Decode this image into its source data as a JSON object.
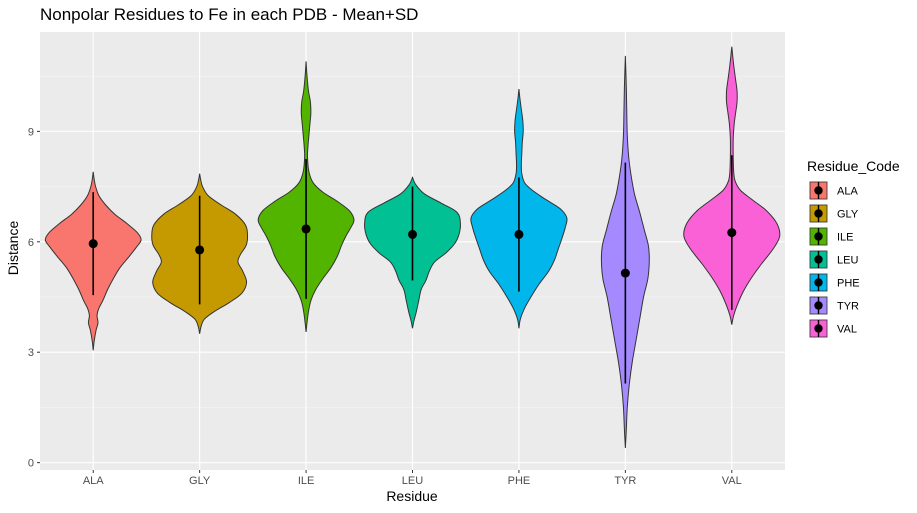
{
  "chart_data": {
    "type": "violin",
    "title": "Nonpolar Residues to Fe in each PDB - Mean+SD",
    "xlabel": "Residue",
    "ylabel": "Distance",
    "ylim": [
      -0.2,
      11.7
    ],
    "yticks": [
      0,
      3,
      6,
      9
    ],
    "categories": [
      "ALA",
      "GLY",
      "ILE",
      "LEU",
      "PHE",
      "TYR",
      "VAL"
    ],
    "legend": {
      "title": "Residue_Code",
      "placement": "right",
      "entries": [
        "ALA",
        "GLY",
        "ILE",
        "LEU",
        "PHE",
        "TYR",
        "VAL"
      ]
    },
    "colors": [
      "#F8766D",
      "#C49A00",
      "#53B400",
      "#00C094",
      "#00B6EB",
      "#A58AFF",
      "#FB61D7"
    ],
    "panel_background": "#EBEBEB",
    "grid": true,
    "series": [
      {
        "name": "ALA",
        "mean": 5.95,
        "sd_low": 4.55,
        "sd_high": 7.35,
        "min": 3.05,
        "max": 7.9,
        "density": [
          [
            3.05,
            0.0
          ],
          [
            3.3,
            0.02
          ],
          [
            3.6,
            0.06
          ],
          [
            3.8,
            0.1
          ],
          [
            4.0,
            0.08
          ],
          [
            4.2,
            0.12
          ],
          [
            4.4,
            0.2
          ],
          [
            4.7,
            0.3
          ],
          [
            5.0,
            0.42
          ],
          [
            5.3,
            0.56
          ],
          [
            5.6,
            0.75
          ],
          [
            5.85,
            0.9
          ],
          [
            6.05,
            1.0
          ],
          [
            6.25,
            0.92
          ],
          [
            6.5,
            0.7
          ],
          [
            6.75,
            0.45
          ],
          [
            7.0,
            0.26
          ],
          [
            7.25,
            0.12
          ],
          [
            7.5,
            0.05
          ],
          [
            7.7,
            0.02
          ],
          [
            7.9,
            0.0
          ]
        ]
      },
      {
        "name": "GLY",
        "mean": 5.78,
        "sd_low": 4.3,
        "sd_high": 7.25,
        "min": 3.5,
        "max": 7.85,
        "density": [
          [
            3.5,
            0.0
          ],
          [
            3.7,
            0.03
          ],
          [
            3.9,
            0.1
          ],
          [
            4.1,
            0.3
          ],
          [
            4.35,
            0.62
          ],
          [
            4.6,
            0.88
          ],
          [
            4.9,
            0.98
          ],
          [
            5.2,
            0.9
          ],
          [
            5.45,
            0.8
          ],
          [
            5.65,
            0.85
          ],
          [
            5.9,
            0.97
          ],
          [
            6.15,
            1.0
          ],
          [
            6.45,
            0.96
          ],
          [
            6.75,
            0.75
          ],
          [
            7.0,
            0.45
          ],
          [
            7.25,
            0.18
          ],
          [
            7.5,
            0.06
          ],
          [
            7.7,
            0.02
          ],
          [
            7.85,
            0.0
          ]
        ]
      },
      {
        "name": "ILE",
        "mean": 6.35,
        "sd_low": 4.45,
        "sd_high": 8.25,
        "min": 3.55,
        "max": 10.9,
        "density": [
          [
            3.55,
            0.0
          ],
          [
            3.8,
            0.02
          ],
          [
            4.1,
            0.05
          ],
          [
            4.4,
            0.1
          ],
          [
            4.7,
            0.2
          ],
          [
            5.0,
            0.35
          ],
          [
            5.3,
            0.52
          ],
          [
            5.6,
            0.65
          ],
          [
            5.9,
            0.74
          ],
          [
            6.15,
            0.83
          ],
          [
            6.4,
            0.94
          ],
          [
            6.6,
            1.0
          ],
          [
            6.85,
            0.9
          ],
          [
            7.1,
            0.65
          ],
          [
            7.35,
            0.35
          ],
          [
            7.6,
            0.15
          ],
          [
            7.9,
            0.06
          ],
          [
            8.3,
            0.03
          ],
          [
            8.6,
            0.04
          ],
          [
            8.9,
            0.06
          ],
          [
            9.2,
            0.08
          ],
          [
            9.5,
            0.1
          ],
          [
            9.8,
            0.09
          ],
          [
            10.1,
            0.05
          ],
          [
            10.5,
            0.02
          ],
          [
            10.9,
            0.0
          ]
        ]
      },
      {
        "name": "LEU",
        "mean": 6.2,
        "sd_low": 4.95,
        "sd_high": 7.5,
        "min": 3.65,
        "max": 7.75,
        "density": [
          [
            3.65,
            0.0
          ],
          [
            3.85,
            0.03
          ],
          [
            4.1,
            0.08
          ],
          [
            4.4,
            0.13
          ],
          [
            4.7,
            0.18
          ],
          [
            4.95,
            0.28
          ],
          [
            5.2,
            0.35
          ],
          [
            5.45,
            0.46
          ],
          [
            5.7,
            0.7
          ],
          [
            5.95,
            0.88
          ],
          [
            6.2,
            0.97
          ],
          [
            6.5,
            1.0
          ],
          [
            6.8,
            0.93
          ],
          [
            7.05,
            0.6
          ],
          [
            7.3,
            0.25
          ],
          [
            7.55,
            0.07
          ],
          [
            7.75,
            0.0
          ]
        ]
      },
      {
        "name": "PHE",
        "mean": 6.2,
        "sd_low": 4.65,
        "sd_high": 7.75,
        "min": 3.65,
        "max": 10.15,
        "density": [
          [
            3.65,
            0.0
          ],
          [
            3.9,
            0.03
          ],
          [
            4.2,
            0.12
          ],
          [
            4.5,
            0.25
          ],
          [
            4.85,
            0.42
          ],
          [
            5.2,
            0.62
          ],
          [
            5.5,
            0.74
          ],
          [
            5.8,
            0.82
          ],
          [
            6.1,
            0.9
          ],
          [
            6.4,
            0.97
          ],
          [
            6.65,
            1.0
          ],
          [
            6.9,
            0.86
          ],
          [
            7.15,
            0.56
          ],
          [
            7.4,
            0.28
          ],
          [
            7.6,
            0.12
          ],
          [
            7.85,
            0.06
          ],
          [
            8.1,
            0.05
          ],
          [
            8.4,
            0.06
          ],
          [
            8.7,
            0.07
          ],
          [
            9.0,
            0.09
          ],
          [
            9.3,
            0.08
          ],
          [
            9.6,
            0.05
          ],
          [
            9.9,
            0.02
          ],
          [
            10.15,
            0.0
          ]
        ]
      },
      {
        "name": "TYR",
        "mean": 5.15,
        "sd_low": 2.15,
        "sd_high": 8.15,
        "min": 0.4,
        "max": 11.05,
        "density": [
          [
            0.4,
            0.0
          ],
          [
            0.9,
            0.02
          ],
          [
            1.5,
            0.04
          ],
          [
            2.1,
            0.08
          ],
          [
            2.7,
            0.14
          ],
          [
            3.3,
            0.22
          ],
          [
            3.9,
            0.3
          ],
          [
            4.5,
            0.38
          ],
          [
            5.0,
            0.47
          ],
          [
            5.5,
            0.5
          ],
          [
            5.9,
            0.48
          ],
          [
            6.3,
            0.4
          ],
          [
            6.8,
            0.3
          ],
          [
            7.3,
            0.19
          ],
          [
            7.8,
            0.12
          ],
          [
            8.3,
            0.07
          ],
          [
            8.9,
            0.04
          ],
          [
            9.5,
            0.03
          ],
          [
            10.2,
            0.02
          ],
          [
            11.05,
            0.0
          ]
        ]
      },
      {
        "name": "VAL",
        "mean": 6.25,
        "sd_low": 4.15,
        "sd_high": 8.35,
        "min": 3.75,
        "max": 11.3,
        "density": [
          [
            3.75,
            0.0
          ],
          [
            4.0,
            0.04
          ],
          [
            4.3,
            0.12
          ],
          [
            4.65,
            0.24
          ],
          [
            5.0,
            0.4
          ],
          [
            5.4,
            0.62
          ],
          [
            5.8,
            0.86
          ],
          [
            6.15,
            1.0
          ],
          [
            6.5,
            0.94
          ],
          [
            6.85,
            0.72
          ],
          [
            7.15,
            0.42
          ],
          [
            7.4,
            0.18
          ],
          [
            7.65,
            0.07
          ],
          [
            7.9,
            0.04
          ],
          [
            8.3,
            0.03
          ],
          [
            8.8,
            0.03
          ],
          [
            9.2,
            0.05
          ],
          [
            9.5,
            0.08
          ],
          [
            9.8,
            0.11
          ],
          [
            10.1,
            0.11
          ],
          [
            10.4,
            0.08
          ],
          [
            10.8,
            0.04
          ],
          [
            11.3,
            0.0
          ]
        ]
      }
    ]
  }
}
